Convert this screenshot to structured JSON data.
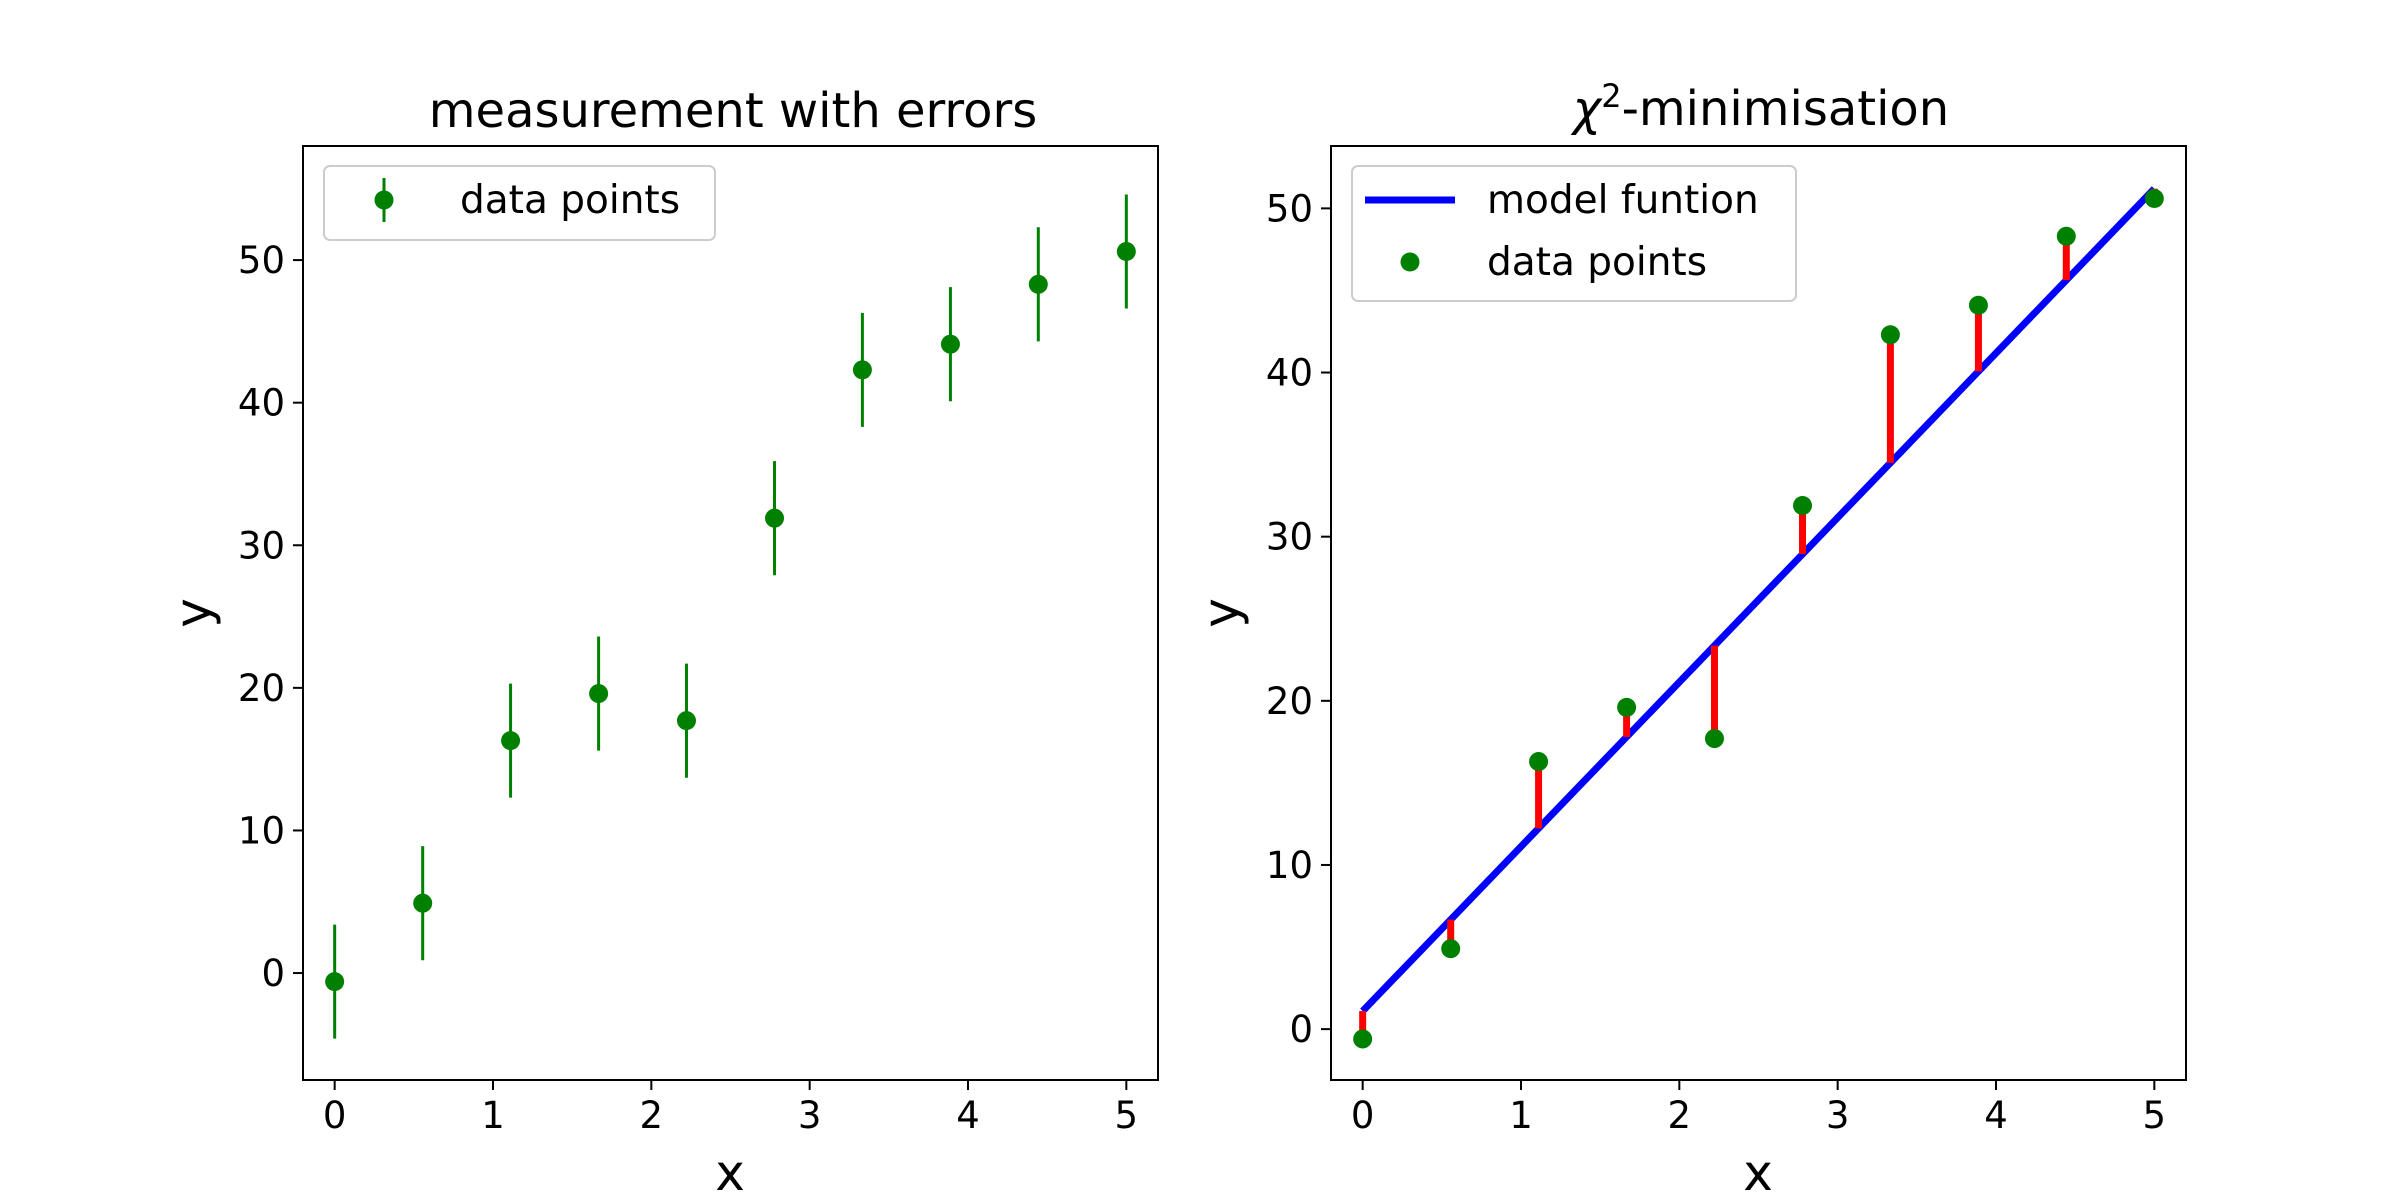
{
  "chart_data": [
    {
      "type": "scatter",
      "title": "measurement with errors",
      "xlabel": "x",
      "ylabel": "y",
      "xlim": [
        -0.2,
        5.2
      ],
      "ylim": [
        -7.5,
        58
      ],
      "xticks": [
        "0",
        "1",
        "2",
        "3",
        "4",
        "5"
      ],
      "yticks": [
        "0",
        "10",
        "20",
        "30",
        "40",
        "50"
      ],
      "legend": {
        "position": "top-left",
        "entries": [
          "data points"
        ]
      },
      "series": [
        {
          "name": "data points",
          "color": "#008000",
          "x": [
            0,
            0.556,
            1.111,
            1.667,
            2.222,
            2.778,
            3.333,
            3.889,
            4.444,
            5.0
          ],
          "y": [
            -0.6,
            4.9,
            16.3,
            19.6,
            17.7,
            31.9,
            42.3,
            44.1,
            48.3,
            50.6
          ],
          "yerr": 4.0
        }
      ]
    },
    {
      "type": "line",
      "title": "χ²-minimisation",
      "title_main": "χ",
      "title_sup": "2",
      "title_rest": "-minimisation",
      "xlabel": "x",
      "ylabel": "y",
      "xlim": [
        -0.2,
        5.2
      ],
      "ylim": [
        -3.1,
        53.8
      ],
      "xticks": [
        "0",
        "1",
        "2",
        "3",
        "4",
        "5"
      ],
      "yticks": [
        "0",
        "10",
        "20",
        "30",
        "40",
        "50"
      ],
      "legend": {
        "position": "top-left",
        "entries": [
          "model funtion",
          "data points"
        ]
      },
      "model": {
        "name": "model funtion",
        "color": "#0000ff",
        "x": [
          0,
          5
        ],
        "y": [
          1.1,
          51.2
        ]
      },
      "residual_color": "#ff0000",
      "series": [
        {
          "name": "data points",
          "color": "#008000",
          "x": [
            0,
            0.556,
            1.111,
            1.667,
            2.222,
            2.778,
            3.333,
            3.889,
            4.444,
            5.0
          ],
          "y": [
            -0.6,
            4.9,
            16.3,
            19.6,
            17.7,
            31.9,
            42.3,
            44.1,
            48.3,
            50.6
          ]
        }
      ]
    }
  ]
}
